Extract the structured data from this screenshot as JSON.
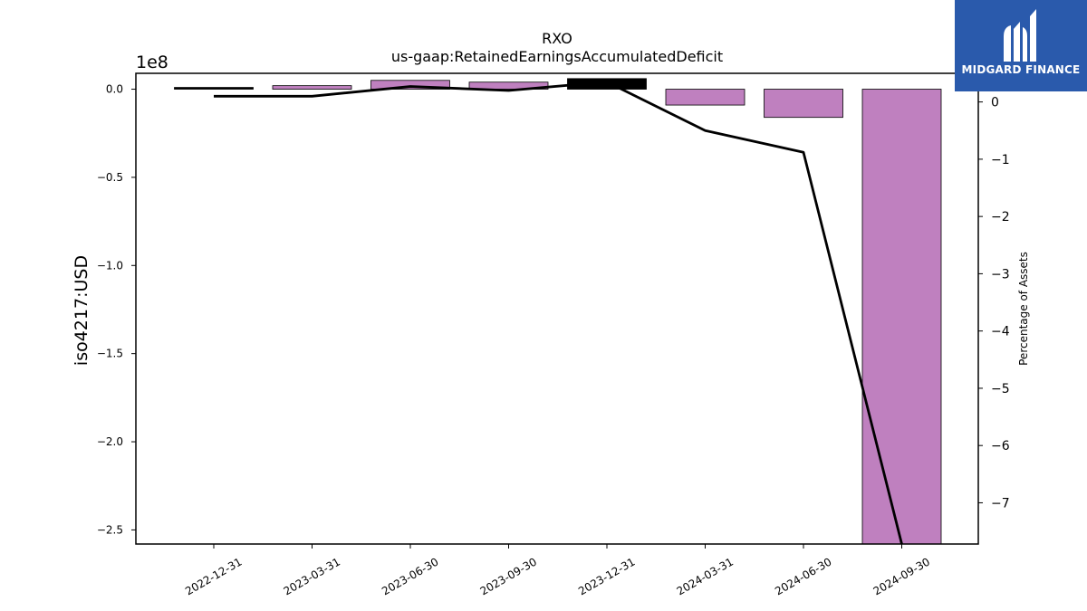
{
  "chart_data": {
    "type": "bar+line",
    "title": "RXO",
    "subtitle": "us-gaap:RetainedEarningsAccumulatedDeficit",
    "ylabel": "iso4217:USD",
    "y_offset_label": "1e8",
    "y2label": "Percentage of Assets",
    "categories": [
      "2022-12-31",
      "2023-03-31",
      "2023-06-30",
      "2023-09-30",
      "2023-12-31",
      "2024-03-31",
      "2024-06-30",
      "2024-09-30"
    ],
    "series": [
      {
        "kind": "bar",
        "axis": "left",
        "values": [
          1000000,
          2000000,
          5000000,
          4000000,
          6000000,
          -9000000,
          -16000000,
          -258000000
        ],
        "colors": [
          "#000000",
          "#bf80bf",
          "#bf80bf",
          "#bf80bf",
          "#000000",
          "#bf80bf",
          "#bf80bf",
          "#bf80bf"
        ]
      },
      {
        "kind": "line",
        "axis": "right",
        "values": [
          0.1,
          0.1,
          0.27,
          0.2,
          0.35,
          -0.5,
          -0.88,
          -7.72
        ],
        "color": "#000000"
      }
    ],
    "ylim": [
      -258000000,
      9000000
    ],
    "yticks": [
      0,
      -50000000,
      -100000000,
      -150000000,
      -200000000,
      -250000000
    ],
    "ytick_labels": [
      "0.0",
      "−0.5",
      "−1.0",
      "−1.5",
      "−2.0",
      "−2.5"
    ],
    "y2lim": [
      -7.72,
      0.5
    ],
    "y2ticks": [
      0,
      -1,
      -2,
      -3,
      -4,
      -5,
      -6,
      -7
    ],
    "y2tick_labels": [
      "0",
      "−1",
      "−2",
      "−3",
      "−4",
      "−5",
      "−6",
      "−7"
    ],
    "grid": false
  },
  "logo": {
    "text": "MIDGARD FINANCE",
    "color": "#2a5aac"
  }
}
